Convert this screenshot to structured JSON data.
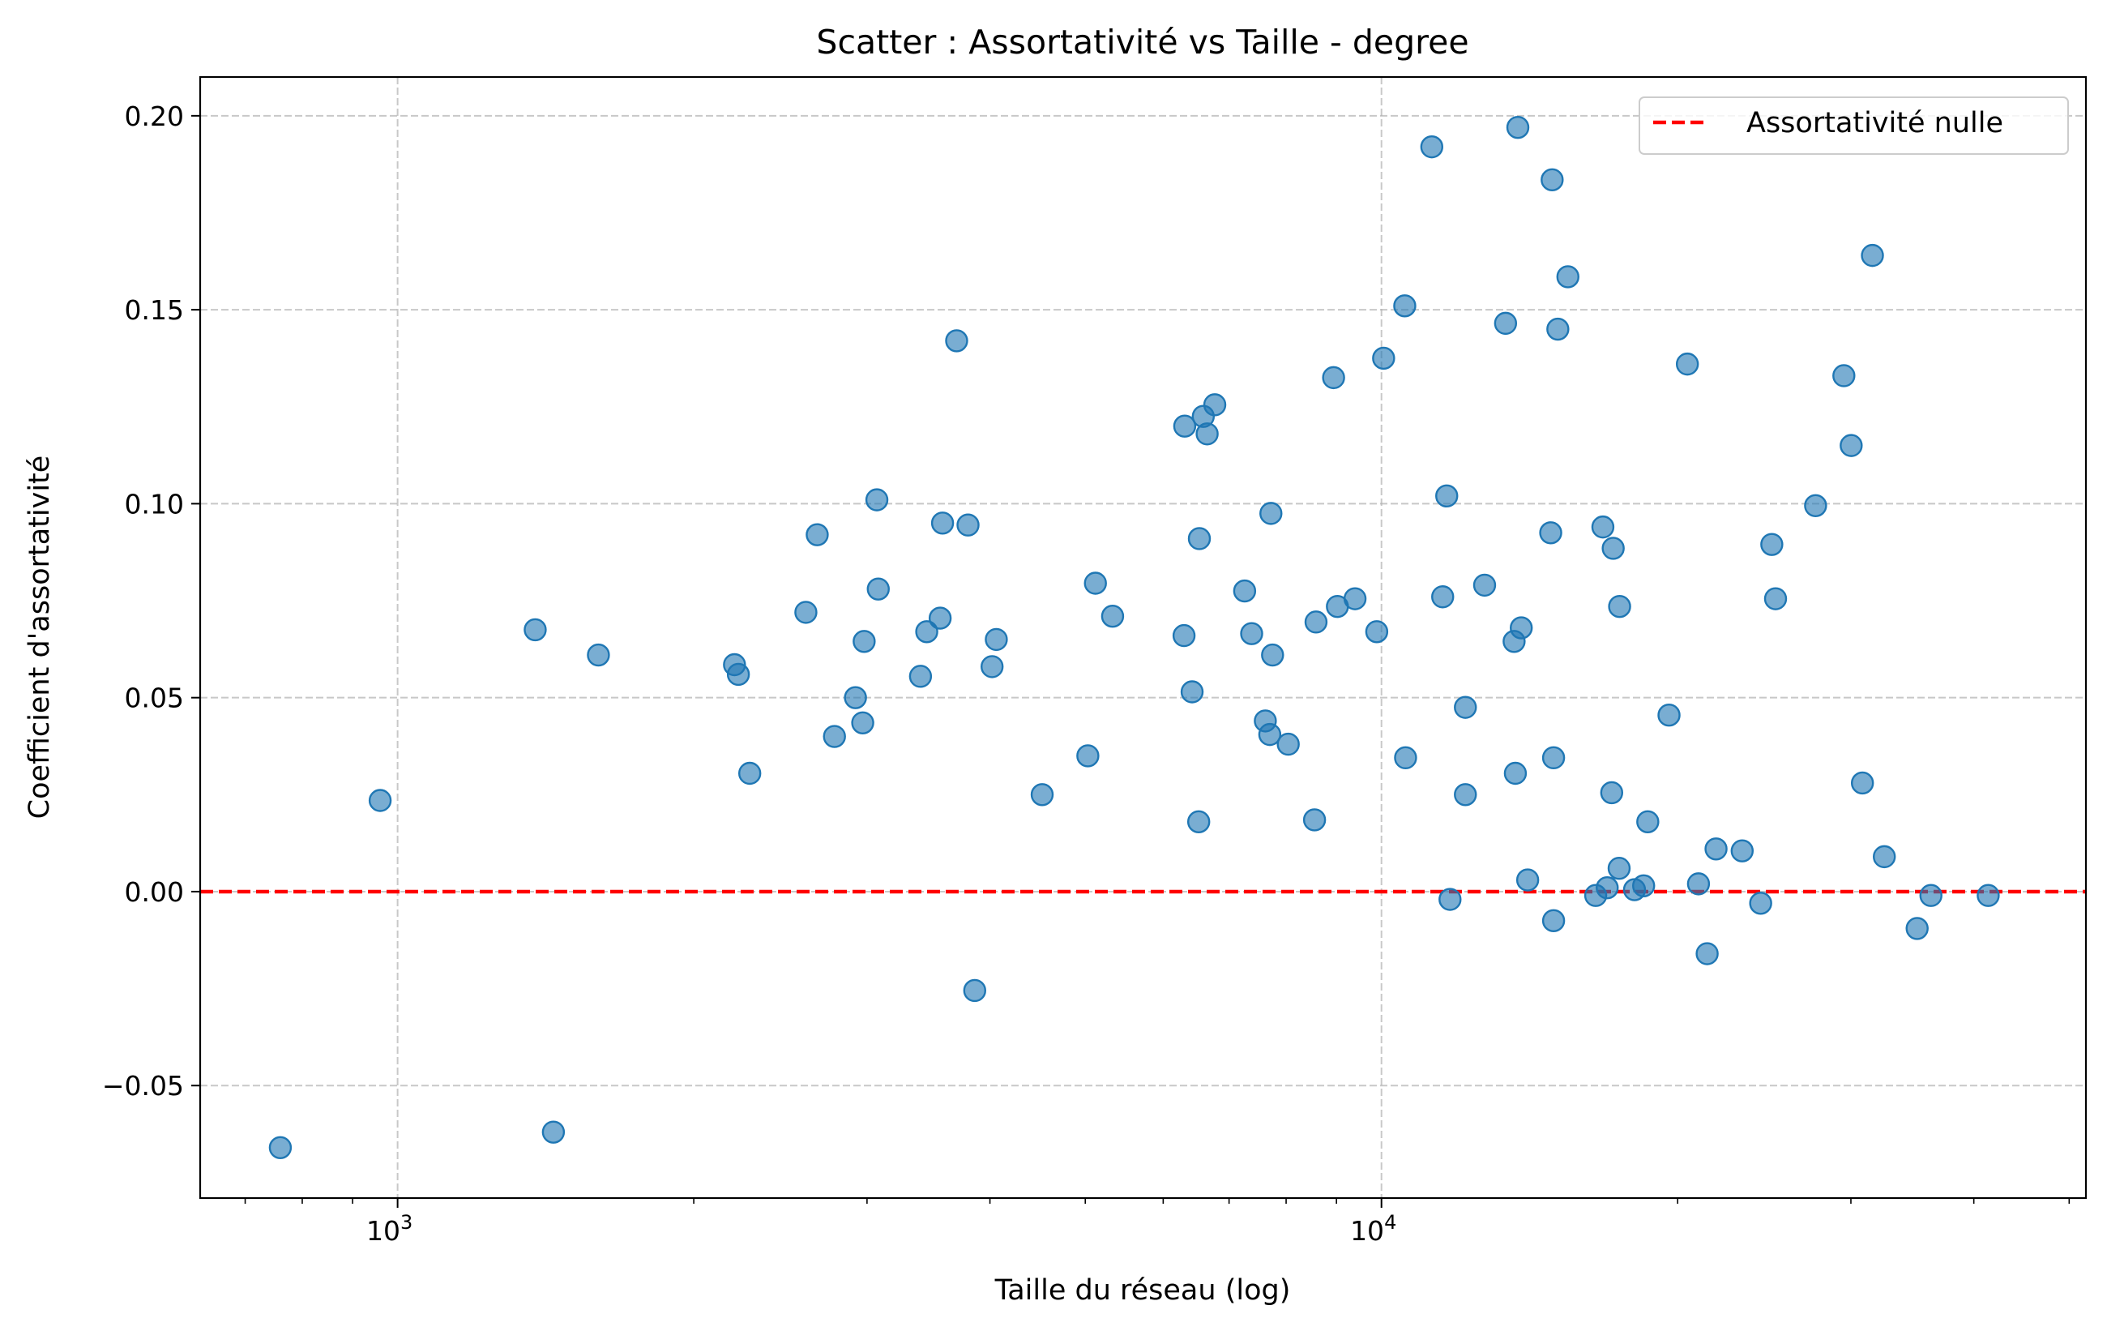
{
  "chart_data": {
    "type": "scatter",
    "title": "Scatter : Assortativité vs Taille - degree",
    "xlabel": "Taille du réseau (log)",
    "ylabel": "Coefficient d'assortativité",
    "xscale": "log",
    "xlim": [
      630,
      52000
    ],
    "ylim": [
      -0.079,
      0.21
    ],
    "x_ticks": [
      {
        "value": 1000,
        "base": "10",
        "exp": "3"
      },
      {
        "value": 10000,
        "base": "10",
        "exp": "4"
      }
    ],
    "y_ticks": [
      {
        "value": -0.05,
        "label": "−0.05"
      },
      {
        "value": 0.0,
        "label": "0.00"
      },
      {
        "value": 0.05,
        "label": "0.05"
      },
      {
        "value": 0.1,
        "label": "0.10"
      },
      {
        "value": 0.15,
        "label": "0.15"
      },
      {
        "value": 0.2,
        "label": "0.20"
      }
    ],
    "grid": true,
    "legend": {
      "placement": "top-right",
      "entries": [
        "Assortativité nulle"
      ]
    },
    "reference_line": {
      "y": 0,
      "color": "#ff0000",
      "style": "dashed",
      "label": "Assortativité nulle"
    },
    "point_color": "#1f77b4",
    "points": [
      [
        760,
        -0.066
      ],
      [
        960,
        0.0235
      ],
      [
        1380,
        0.0675
      ],
      [
        1440,
        -0.062
      ],
      [
        1600,
        0.061
      ],
      [
        2200,
        0.0585
      ],
      [
        2220,
        0.056
      ],
      [
        2280,
        0.0305
      ],
      [
        2600,
        0.072
      ],
      [
        2670,
        0.092
      ],
      [
        2780,
        0.04
      ],
      [
        2920,
        0.05
      ],
      [
        2970,
        0.0435
      ],
      [
        2980,
        0.0645
      ],
      [
        3070,
        0.101
      ],
      [
        3080,
        0.078
      ],
      [
        3400,
        0.0555
      ],
      [
        3450,
        0.067
      ],
      [
        3560,
        0.0705
      ],
      [
        3580,
        0.095
      ],
      [
        3700,
        0.142
      ],
      [
        3800,
        0.0945
      ],
      [
        3860,
        -0.0255
      ],
      [
        4020,
        0.058
      ],
      [
        4060,
        0.065
      ],
      [
        4520,
        0.025
      ],
      [
        5030,
        0.035
      ],
      [
        5120,
        0.0795
      ],
      [
        5330,
        0.071
      ],
      [
        6300,
        0.066
      ],
      [
        6310,
        0.12
      ],
      [
        6420,
        0.0515
      ],
      [
        6520,
        0.018
      ],
      [
        6530,
        0.091
      ],
      [
        6590,
        0.1225
      ],
      [
        6650,
        0.118
      ],
      [
        6770,
        0.1255
      ],
      [
        7260,
        0.0775
      ],
      [
        7380,
        0.0665
      ],
      [
        7620,
        0.044
      ],
      [
        7700,
        0.0405
      ],
      [
        7720,
        0.0975
      ],
      [
        7750,
        0.061
      ],
      [
        8040,
        0.038
      ],
      [
        8550,
        0.0185
      ],
      [
        8580,
        0.0695
      ],
      [
        8940,
        0.1325
      ],
      [
        9020,
        0.0735
      ],
      [
        9400,
        0.0755
      ],
      [
        9890,
        0.067
      ],
      [
        10050,
        0.1375
      ],
      [
        10560,
        0.151
      ],
      [
        10580,
        0.0345
      ],
      [
        11250,
        0.192
      ],
      [
        11540,
        0.076
      ],
      [
        11650,
        0.102
      ],
      [
        11740,
        -0.002
      ],
      [
        12170,
        0.025
      ],
      [
        12170,
        0.0475
      ],
      [
        12730,
        0.079
      ],
      [
        13370,
        0.1465
      ],
      [
        13640,
        0.0645
      ],
      [
        13680,
        0.0305
      ],
      [
        13760,
        0.197
      ],
      [
        13870,
        0.068
      ],
      [
        14080,
        0.003
      ],
      [
        14860,
        0.0925
      ],
      [
        14910,
        0.1835
      ],
      [
        14960,
        0.0345
      ],
      [
        14960,
        -0.0075
      ],
      [
        15110,
        0.145
      ],
      [
        15470,
        0.1585
      ],
      [
        16510,
        -0.001
      ],
      [
        16790,
        0.094
      ],
      [
        16960,
        0.001
      ],
      [
        17140,
        0.0255
      ],
      [
        17200,
        0.0885
      ],
      [
        17440,
        0.006
      ],
      [
        17460,
        0.0735
      ],
      [
        18080,
        0.0005
      ],
      [
        18470,
        0.0015
      ],
      [
        18650,
        0.018
      ],
      [
        19600,
        0.0455
      ],
      [
        20460,
        0.136
      ],
      [
        21000,
        0.002
      ],
      [
        21430,
        -0.016
      ],
      [
        21880,
        0.011
      ],
      [
        23260,
        0.0105
      ],
      [
        24290,
        -0.003
      ],
      [
        24930,
        0.0895
      ],
      [
        25150,
        0.0755
      ],
      [
        27620,
        0.0995
      ],
      [
        29510,
        0.133
      ],
      [
        30020,
        0.115
      ],
      [
        30820,
        0.028
      ],
      [
        31550,
        0.164
      ],
      [
        32440,
        0.009
      ],
      [
        35030,
        -0.0095
      ],
      [
        36180,
        -0.001
      ],
      [
        41370,
        -0.001
      ]
    ]
  }
}
